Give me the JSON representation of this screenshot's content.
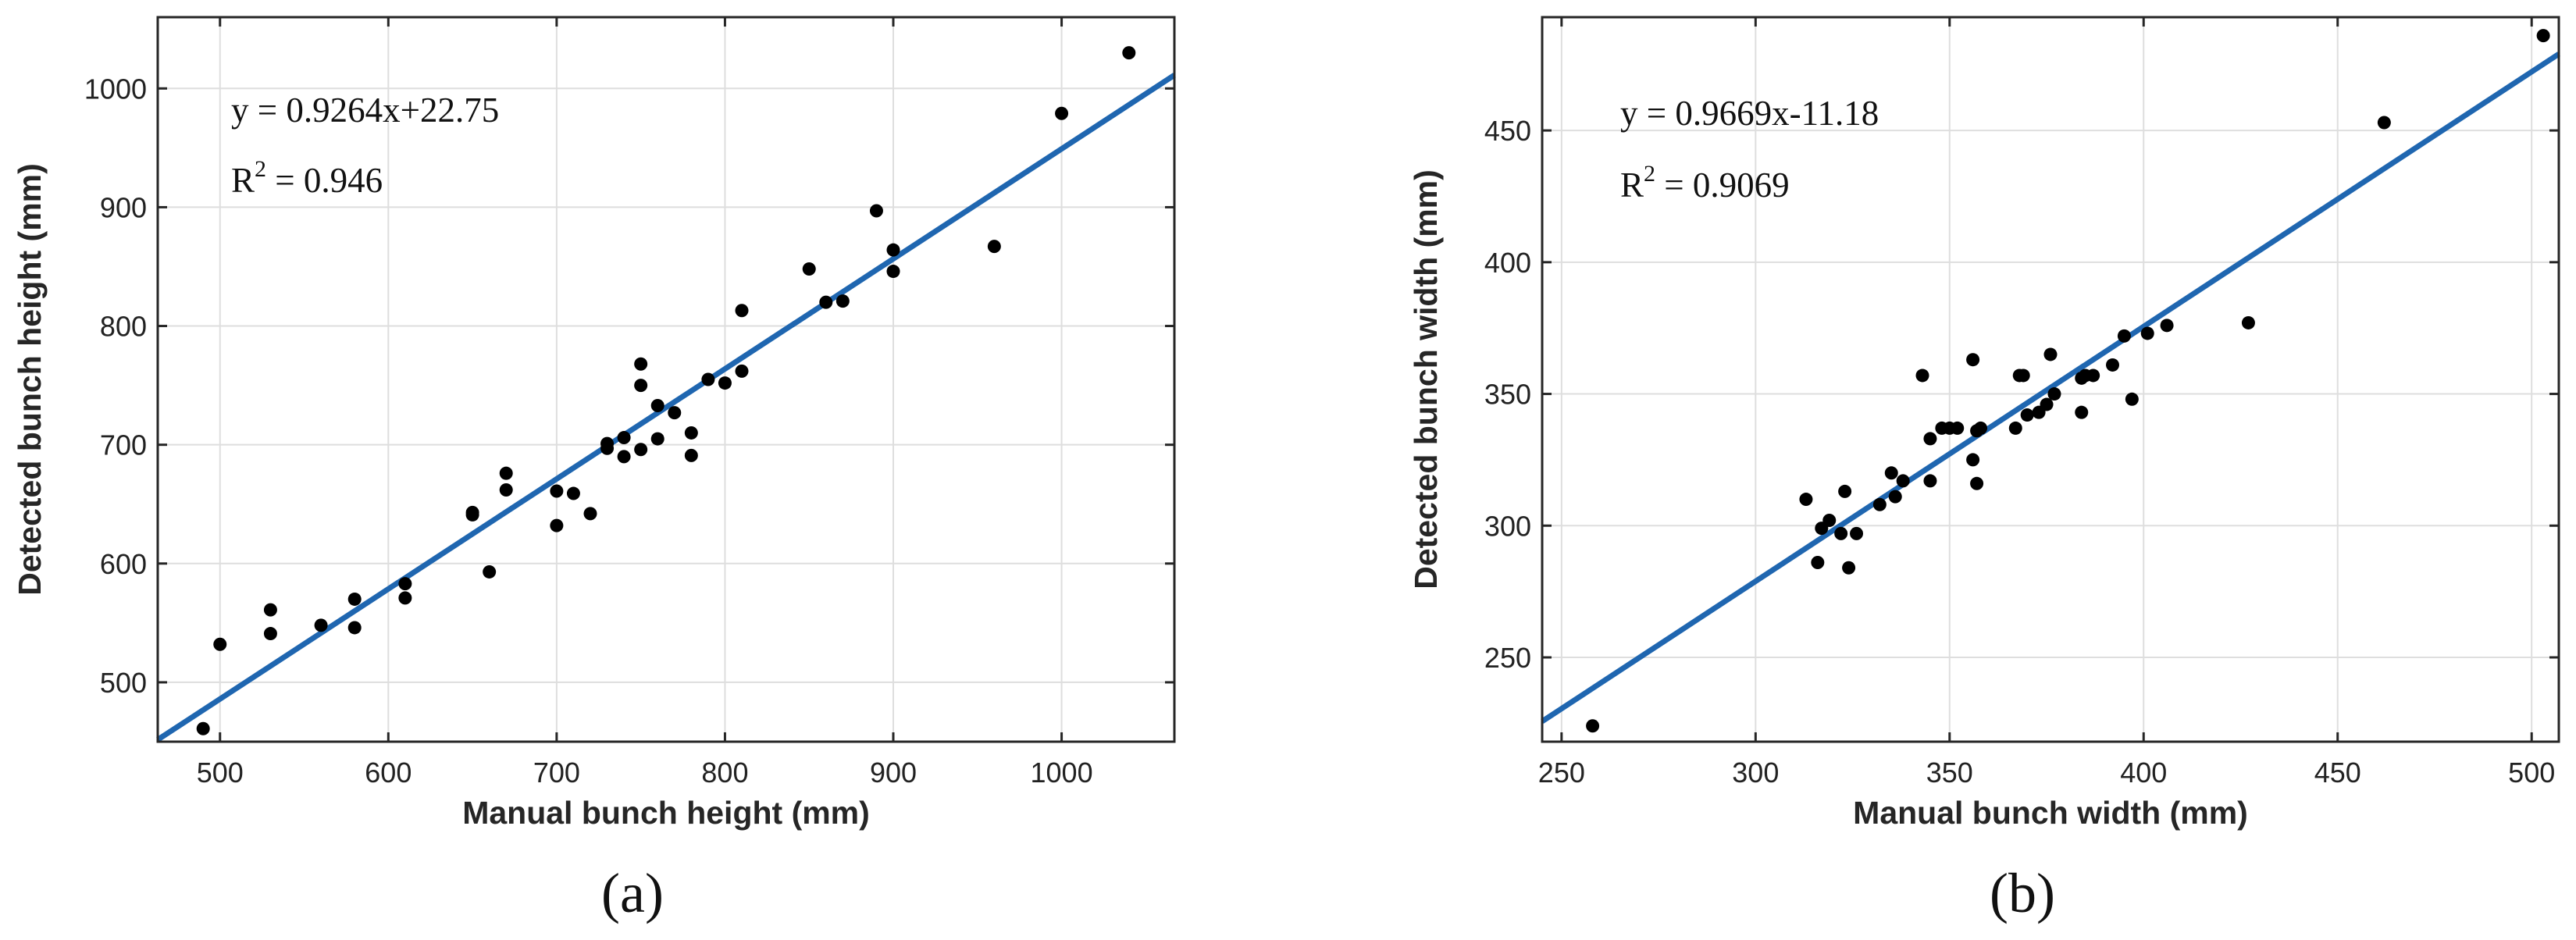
{
  "chart_data": [
    {
      "type": "scatter",
      "panel": "(a)",
      "xlabel": "Manual bunch height (mm)",
      "ylabel": "Detected bunch height (mm)",
      "xlim": [
        463,
        1067
      ],
      "ylim": [
        450,
        1060
      ],
      "xticks": [
        500,
        600,
        700,
        800,
        900,
        1000
      ],
      "yticks": [
        500,
        600,
        700,
        800,
        900,
        1000
      ],
      "grid": true,
      "equation": "y = 0.9264x+22.75",
      "r2_label": "R",
      "r2_sup": "2",
      "r2_value": " = 0.946",
      "fit": {
        "slope": 0.9264,
        "intercept": 22.75
      },
      "x": [
        490,
        500,
        530,
        530,
        560,
        580,
        580,
        610,
        610,
        650,
        650,
        660,
        670,
        670,
        700,
        700,
        710,
        720,
        730,
        730,
        740,
        740,
        750,
        750,
        750,
        760,
        760,
        770,
        780,
        780,
        790,
        800,
        810,
        810,
        850,
        860,
        870,
        890,
        900,
        900,
        960,
        1000,
        1040
      ],
      "y": [
        461,
        532,
        541,
        561,
        548,
        546,
        570,
        571,
        583,
        641,
        643,
        593,
        662,
        676,
        632,
        661,
        659,
        642,
        697,
        701,
        690,
        706,
        696,
        750,
        768,
        705,
        733,
        727,
        691,
        710,
        755,
        752,
        762,
        813,
        848,
        820,
        821,
        897,
        846,
        864,
        867,
        979,
        1030
      ]
    },
    {
      "type": "scatter",
      "panel": "(b)",
      "xlabel": "Manual bunch width (mm)",
      "ylabel": "Detected bunch width (mm)",
      "xlim": [
        245,
        507
      ],
      "ylim": [
        218,
        493
      ],
      "xticks": [
        250,
        300,
        350,
        400,
        450,
        500
      ],
      "yticks": [
        250,
        300,
        350,
        400,
        450
      ],
      "grid": true,
      "equation": "y = 0.9669x-11.18",
      "r2_label": "R",
      "r2_sup": "2",
      "r2_value": " = 0.9069",
      "fit": {
        "slope": 0.9669,
        "intercept": -11.18
      },
      "x": [
        258,
        313,
        316,
        317,
        319,
        322,
        323,
        324,
        326,
        332,
        335,
        336,
        338,
        343,
        345,
        345,
        348,
        350,
        352,
        356,
        356,
        357,
        357,
        358,
        367,
        368,
        369,
        370,
        373,
        375,
        376,
        377,
        384,
        384,
        385,
        387,
        392,
        395,
        397,
        401,
        406,
        427,
        462,
        503
      ],
      "y": [
        224,
        310,
        286,
        299,
        302,
        297,
        313,
        284,
        297,
        308,
        320,
        311,
        317,
        357,
        333,
        317,
        337,
        337,
        337,
        363,
        325,
        316,
        336,
        337,
        337,
        357,
        357,
        342,
        343,
        346,
        365,
        350,
        356,
        343,
        357,
        357,
        361,
        372,
        348,
        373,
        376,
        377,
        453,
        486
      ]
    }
  ]
}
